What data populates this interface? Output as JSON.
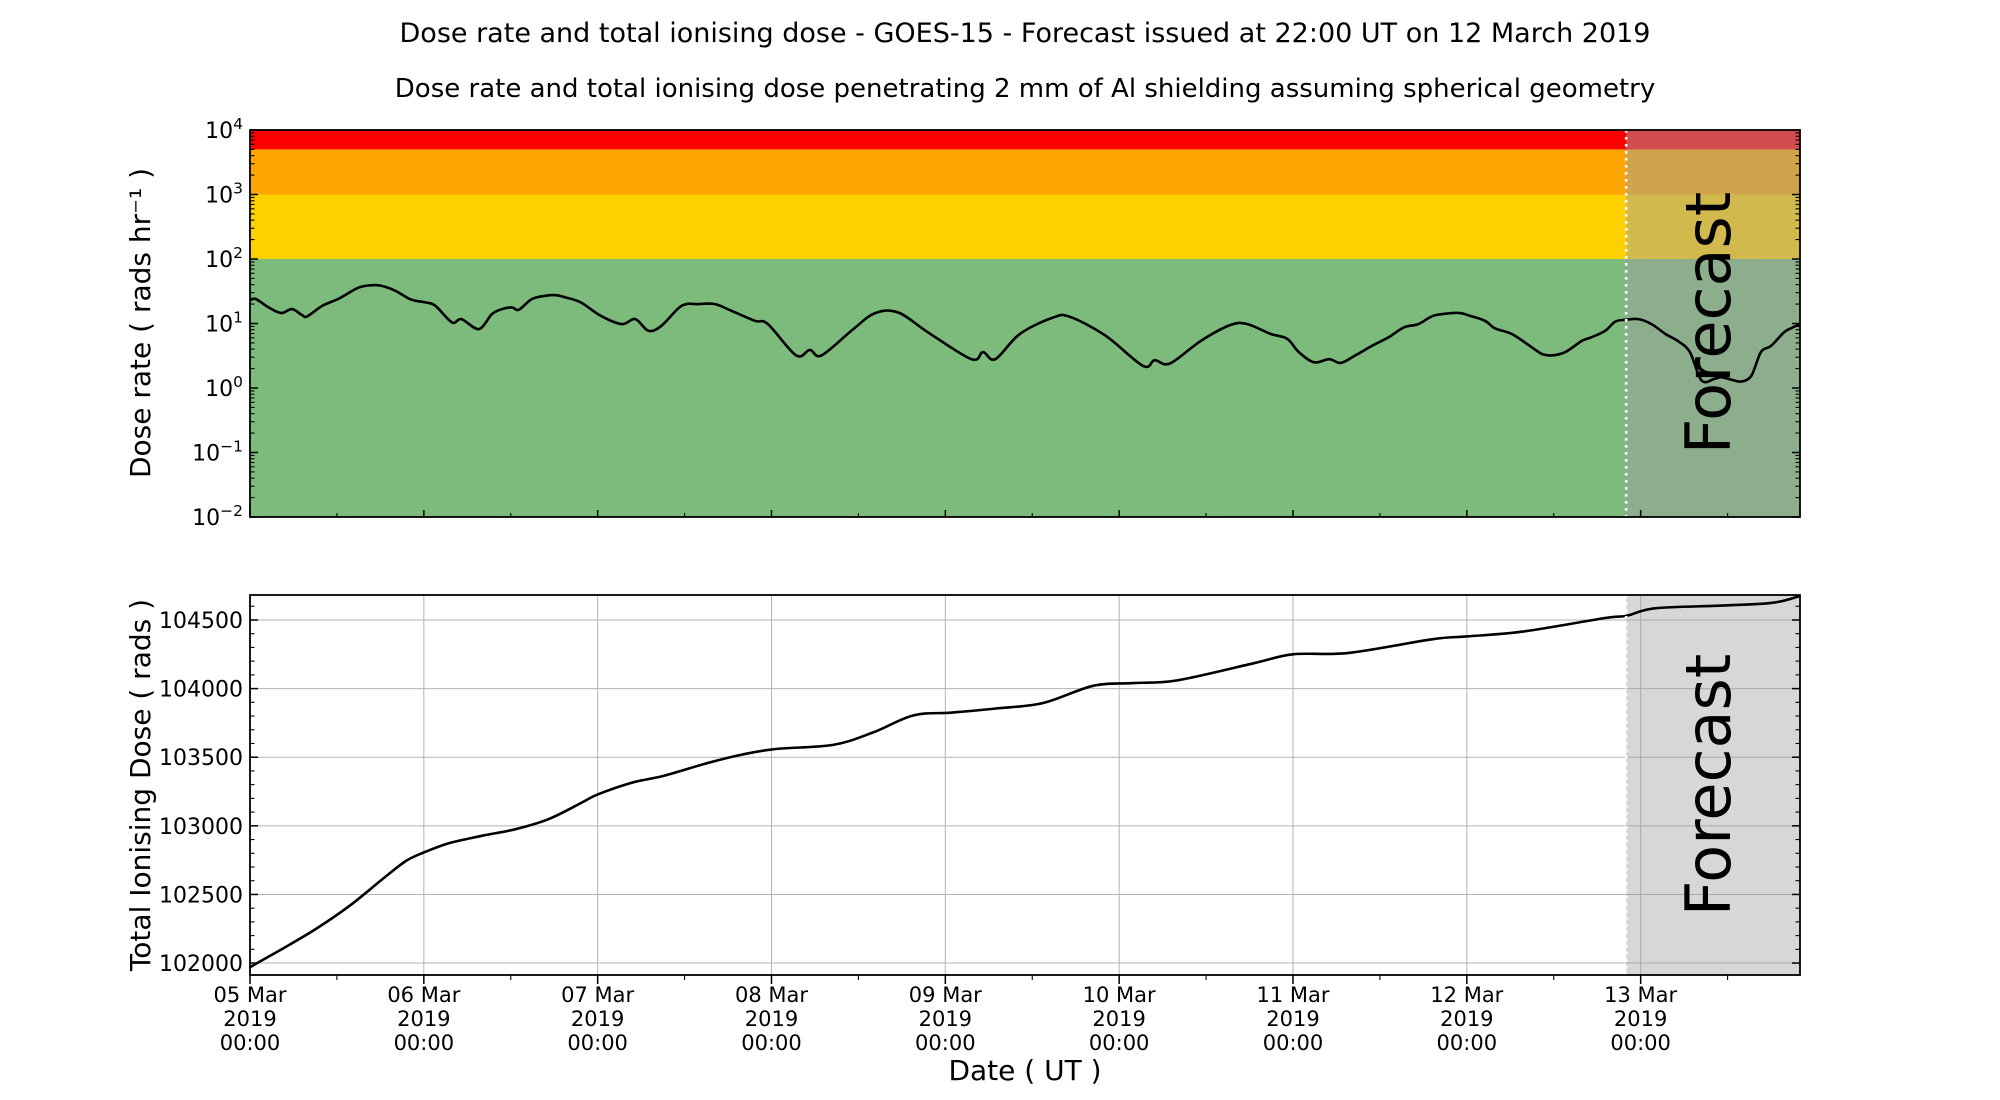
{
  "figure": {
    "title": "Dose rate and total ionising dose - GOES-15 - Forecast issued at 22:00 UT on 12 March 2019",
    "subtitle": "Dose rate and total ionising dose penetrating 2 mm of Al shielding assuming spherical geometry",
    "xlabel": "Date ( UT )",
    "forecast_label": "Forecast",
    "colors": {
      "band_green": "#7cbb7c",
      "band_yellow": "#ffd000",
      "band_orange": "#ffa500",
      "band_red": "#ff0000",
      "overlay_gray": "#a0a0a0",
      "overlay_alpha": 0.48,
      "grid": "#b3b3b3",
      "line": "#000000",
      "boundary_line": "#ffffff",
      "watermark": "rgba(60,60,60,0.30)",
      "spine": "#000000"
    },
    "x_axis": {
      "end_hour": 214,
      "forecast_start_hour": 190,
      "major_tick_hours": [
        0,
        24,
        48,
        72,
        96,
        120,
        144,
        168,
        192
      ],
      "minor_tick_hours": [
        12,
        36,
        60,
        84,
        108,
        132,
        156,
        180,
        204
      ],
      "tick_labels": [
        {
          "date": "05 Mar",
          "year": "2019",
          "time": "00:00"
        },
        {
          "date": "06 Mar",
          "year": "2019",
          "time": "00:00"
        },
        {
          "date": "07 Mar",
          "year": "2019",
          "time": "00:00"
        },
        {
          "date": "08 Mar",
          "year": "2019",
          "time": "00:00"
        },
        {
          "date": "09 Mar",
          "year": "2019",
          "time": "00:00"
        },
        {
          "date": "10 Mar",
          "year": "2019",
          "time": "00:00"
        },
        {
          "date": "11 Mar",
          "year": "2019",
          "time": "00:00"
        },
        {
          "date": "12 Mar",
          "year": "2019",
          "time": "00:00"
        },
        {
          "date": "13 Mar",
          "year": "2019",
          "time": "00:00"
        }
      ]
    }
  },
  "chart_data": [
    {
      "type": "line",
      "name": "dose-rate",
      "ylabel": "Dose rate ( rads hr⁻¹ )",
      "yscale": "log",
      "ylim": [
        0.01,
        10000
      ],
      "yticks": [
        {
          "value": 10000,
          "exp": "4",
          "label": "10^4"
        },
        {
          "value": 1000,
          "exp": "3",
          "label": "10^3"
        },
        {
          "value": 100,
          "exp": "2",
          "label": "10^2"
        },
        {
          "value": 10,
          "exp": "1",
          "label": "10^1"
        },
        {
          "value": 1,
          "exp": "0",
          "label": "10^0"
        },
        {
          "value": 0.1,
          "exp": "−1",
          "label": "10^-1"
        },
        {
          "value": 0.01,
          "exp": "−2",
          "label": "10^-2"
        }
      ],
      "bands": [
        {
          "min": 0.01,
          "max": 100,
          "color_key": "band_green"
        },
        {
          "min": 100,
          "max": 1000,
          "color_key": "band_yellow"
        },
        {
          "min": 1000,
          "max": 5000,
          "color_key": "band_orange"
        },
        {
          "min": 5000,
          "max": 10000,
          "color_key": "band_red"
        }
      ],
      "grid": false,
      "series": [
        {
          "name": "dose_rate_rads_per_hr",
          "x": [
            0,
            0.8,
            2.6,
            4.3,
            5.8,
            7.2,
            7.9,
            10,
            12.3,
            15,
            16.9,
            18.2,
            20.1,
            21.9,
            22.9,
            24.3,
            25.6,
            27.9,
            29.2,
            31.6,
            33.4,
            34.8,
            36.2,
            37.1,
            38.9,
            40.8,
            42.2,
            43.6,
            45.7,
            48.4,
            51.3,
            53.2,
            55,
            56.8,
            59.6,
            61.9,
            64.2,
            66.5,
            69.7,
            71.5,
            75.4,
            77.3,
            78.9,
            83.3,
            86.3,
            89.5,
            93.6,
            99.6,
            101.2,
            102.9,
            106.3,
            110.9,
            113.2,
            118.1,
            123.3,
            124.9,
            127,
            131.3,
            135.4,
            137.7,
            140.9,
            143.2,
            144.8,
            146.9,
            149,
            150.6,
            152.6,
            154.9,
            157.2,
            159.3,
            161.3,
            163.4,
            165.9,
            167.1,
            168.4,
            170.5,
            171.9,
            174.2,
            176.7,
            178.3,
            179.7,
            181.6,
            183.9,
            185.2,
            187.1,
            188.5,
            189.9,
            191.7,
            193.5,
            195.4,
            197.2,
            198.8,
            200.4,
            202.2,
            203.1,
            204.5,
            205.9,
            207.3,
            208.6,
            210,
            211.8,
            213,
            214
          ],
          "y": [
            23,
            24,
            17.7,
            14.5,
            16.7,
            13.5,
            12.9,
            18.8,
            24.4,
            36,
            39.2,
            38.3,
            32,
            24.4,
            22.5,
            21.2,
            18.8,
            10.4,
            11.7,
            8.2,
            14,
            16.7,
            17.7,
            16.3,
            23.9,
            26.9,
            27.5,
            25.3,
            21.2,
            13.2,
            9.8,
            11.7,
            7.7,
            9.2,
            18.8,
            20,
            20,
            15.7,
            11,
            9.8,
            3.2,
            3.9,
            3.2,
            8.2,
            14.5,
            14.8,
            7.3,
            2.8,
            3.6,
            2.8,
            6.9,
            12.4,
            12.7,
            6.5,
            2.2,
            2.7,
            2.4,
            5.4,
            9.5,
            9.8,
            6.9,
            5.8,
            3.6,
            2.5,
            2.8,
            2.45,
            3.2,
            4.5,
            6.1,
            8.7,
            9.8,
            13.2,
            14.5,
            14.5,
            13.2,
            11,
            8.4,
            6.9,
            4.5,
            3.4,
            3.2,
            3.6,
            5.4,
            6.1,
            7.7,
            10.7,
            11.4,
            11.7,
            9.8,
            6.9,
            5.3,
            3.6,
            1.31,
            1.39,
            1.47,
            1.35,
            1.26,
            1.56,
            3.6,
            4.5,
            7.3,
            8.7,
            9.8
          ]
        }
      ]
    },
    {
      "type": "line",
      "name": "total-ionising-dose",
      "ylabel": "Total Ionising Dose ( rads )",
      "yscale": "linear",
      "ylim": [
        101913,
        104682
      ],
      "yticks": [
        {
          "value": 102000,
          "label": "102000"
        },
        {
          "value": 102500,
          "label": "102500"
        },
        {
          "value": 103000,
          "label": "103000"
        },
        {
          "value": 103500,
          "label": "103500"
        },
        {
          "value": 104000,
          "label": "104000"
        },
        {
          "value": 104500,
          "label": "104500"
        }
      ],
      "minor_tick_step": 100,
      "grid": true,
      "series": [
        {
          "name": "total_ionising_dose_rads",
          "x": [
            0,
            4.5,
            9,
            13.7,
            18.3,
            21.5,
            24,
            27.5,
            32,
            36.6,
            41.2,
            45.8,
            48,
            52.7,
            57.3,
            63.3,
            68,
            72.6,
            80.5,
            86,
            91.6,
            96.9,
            103,
            109.5,
            116.4,
            122,
            128,
            138.6,
            144,
            151.7,
            163.3,
            168,
            175.7,
            187.2,
            190,
            194,
            203.2,
            210.2,
            214
          ],
          "y": [
            101970,
            102105,
            102245,
            102415,
            102612,
            102743,
            102806,
            102874,
            102927,
            102975,
            103048,
            103169,
            103229,
            103314,
            103367,
            103459,
            103520,
            103560,
            103590,
            103680,
            103805,
            103825,
            103855,
            103895,
            104020,
            104040,
            104060,
            104185,
            104250,
            104260,
            104360,
            104380,
            104415,
            104515,
            104530,
            104585,
            104605,
            104625,
            104675
          ]
        }
      ]
    }
  ]
}
